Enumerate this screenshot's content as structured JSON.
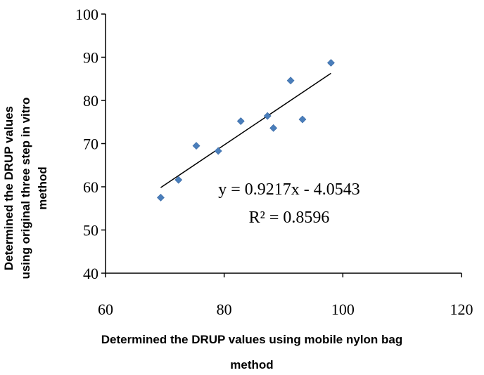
{
  "chart_data": {
    "type": "scatter",
    "title": "",
    "xlabel_lines": [
      "Determined the DRUP  values using mobile nylon bag",
      "method"
    ],
    "ylabel_lines": [
      "Determined the DRUP  values",
      "using original  three step in vitro",
      "method"
    ],
    "xlim": [
      60,
      120
    ],
    "ylim": [
      40,
      100
    ],
    "x_ticks": [
      "60",
      "80",
      "100",
      "120"
    ],
    "y_ticks": [
      "40",
      "50",
      "60",
      "70",
      "80",
      "90",
      "100"
    ],
    "grid": false,
    "legend": "none",
    "marker_color": "#4a7ebb",
    "series": [
      {
        "x": [
          69.3,
          72.3,
          75.3,
          79.0,
          82.8,
          87.3,
          88.3,
          91.2,
          93.2,
          98.0
        ],
        "y": [
          57.5,
          61.6,
          69.5,
          68.3,
          75.2,
          76.4,
          73.6,
          84.6,
          75.6,
          88.7
        ]
      }
    ],
    "trendline": {
      "slope": 0.9217,
      "intercept": -4.0543,
      "x_range": [
        69.3,
        98.0
      ],
      "color": "#000000"
    },
    "annotations": {
      "equation": "y = 0.9217x - 4.0543",
      "r_squared": "R² = 0.8596"
    }
  }
}
